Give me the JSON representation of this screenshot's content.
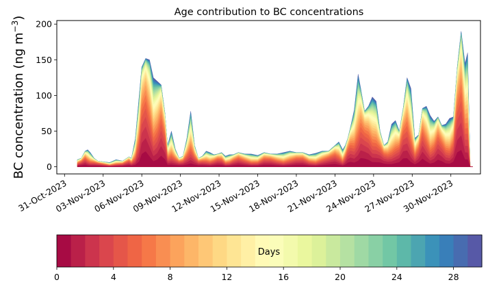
{
  "chart_data": {
    "type": "area",
    "stacked": true,
    "title": "Age contribution to BC concentrations",
    "ylabel": "BC concentration (ng m",
    "ylabel_sup": "−3",
    "ylabel_close": ")",
    "xlabel": "",
    "ylim": [
      -10,
      205
    ],
    "yticks": [
      0,
      50,
      100,
      150,
      200
    ],
    "xlim": [
      -0.6,
      32.3
    ],
    "x_tick_positions": [
      0,
      3,
      6,
      9,
      12,
      15,
      18,
      21,
      24,
      27,
      30
    ],
    "x_tick_labels": [
      "31-Oct-2023",
      "03-Nov-2023",
      "06-Nov-2023",
      "09-Nov-2023",
      "12-Nov-2023",
      "15-Nov-2023",
      "18-Nov-2023",
      "21-Nov-2023",
      "24-Nov-2023",
      "27-Nov-2023",
      "30-Nov-2023"
    ],
    "x_unit": "days since 31-Oct-2023",
    "total": {
      "x": [
        1.0,
        1.3,
        1.6,
        1.8,
        2.0,
        2.3,
        2.6,
        3.0,
        3.5,
        4.0,
        4.5,
        5.0,
        5.2,
        5.5,
        5.8,
        6.0,
        6.3,
        6.6,
        6.9,
        7.2,
        7.5,
        7.8,
        8.0,
        8.3,
        8.6,
        8.9,
        9.2,
        9.5,
        9.8,
        10.1,
        10.4,
        10.7,
        11.0,
        11.3,
        11.6,
        11.9,
        12.2,
        12.5,
        12.8,
        13.1,
        13.5,
        14.0,
        14.5,
        15.0,
        15.5,
        16.0,
        16.5,
        17.0,
        17.5,
        18.0,
        18.5,
        19.0,
        19.5,
        20.0,
        20.5,
        21.0,
        21.3,
        21.6,
        21.8,
        22.0,
        22.2,
        22.5,
        22.8,
        23.0,
        23.3,
        23.6,
        23.9,
        24.2,
        24.5,
        24.8,
        25.1,
        25.4,
        25.7,
        26.0,
        26.3,
        26.6,
        26.9,
        27.2,
        27.5,
        27.8,
        28.1,
        28.4,
        28.7,
        29.0,
        29.3,
        29.6,
        29.9,
        30.2,
        30.5,
        30.8,
        31.1,
        31.3,
        31.5,
        31.7
      ],
      "y": [
        10,
        12,
        22,
        24,
        20,
        12,
        8,
        7,
        6,
        10,
        8,
        14,
        12,
        40,
        100,
        140,
        152,
        150,
        125,
        120,
        115,
        75,
        30,
        50,
        25,
        12,
        15,
        40,
        78,
        30,
        12,
        15,
        22,
        20,
        17,
        18,
        20,
        15,
        17,
        17,
        20,
        18,
        18,
        16,
        20,
        18,
        18,
        20,
        22,
        20,
        20,
        17,
        19,
        22,
        22,
        30,
        35,
        24,
        30,
        40,
        55,
        80,
        130,
        110,
        78,
        85,
        98,
        92,
        50,
        30,
        35,
        60,
        65,
        50,
        82,
        125,
        110,
        40,
        45,
        82,
        85,
        72,
        64,
        70,
        58,
        60,
        68,
        70,
        140,
        190,
        145,
        160,
        0,
        0
      ]
    },
    "age_colorbar": {
      "label": "Days",
      "min": 0,
      "max": 30,
      "ticks": [
        0,
        4,
        8,
        12,
        16,
        20,
        24,
        28
      ],
      "colormap": "Spectral",
      "colors": [
        "#9e0142",
        "#d53e4f",
        "#f46d43",
        "#fdae61",
        "#fee08b",
        "#ffffbf",
        "#e6f598",
        "#abdda4",
        "#66c2a5",
        "#3288bd",
        "#5e4fa2"
      ]
    }
  }
}
